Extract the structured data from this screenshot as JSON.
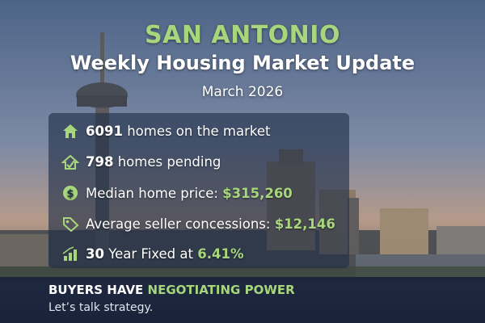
{
  "header": {
    "city": "SAN ANTONIO",
    "title": "Weekly Housing Market Update",
    "date": "March 2026"
  },
  "stats": [
    {
      "value": "6091",
      "text": "homes on the market"
    },
    {
      "value": "798",
      "text": "homes pending"
    },
    {
      "text": "Median home price:",
      "value": "$315,260"
    },
    {
      "text": "Average seller concessions:",
      "value": "$12,146"
    },
    {
      "value": "30",
      "text": "Year Fixed at",
      "rate": "6.41%"
    }
  ],
  "footer": {
    "headline": "BUYERS HAVE",
    "highlight": "NEGOTIATING POWER",
    "tagline": "Let’s talk strategy."
  }
}
